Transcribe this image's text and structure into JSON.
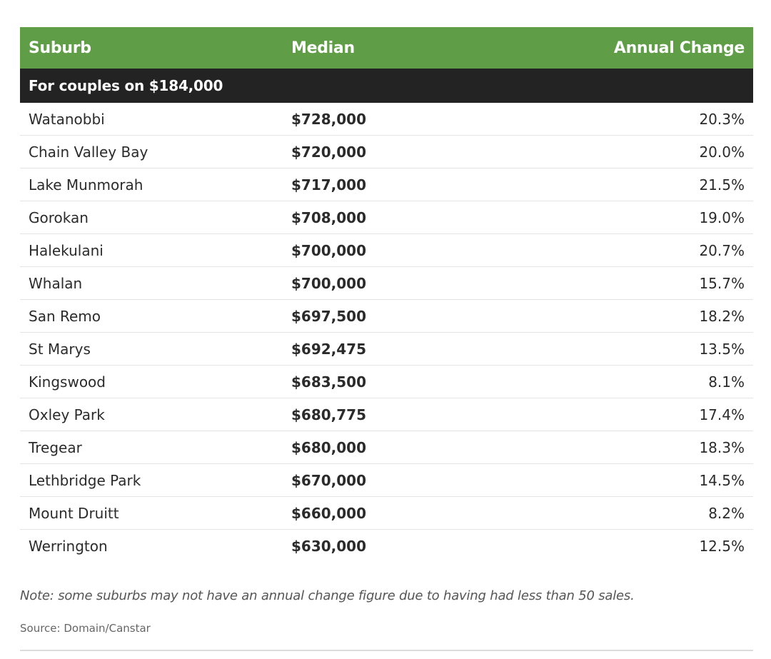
{
  "table": {
    "headers": [
      "Suburb",
      "Median",
      "Annual Change"
    ],
    "group_label": "For couples on $184,000",
    "rows": [
      {
        "suburb": "Watanobbi",
        "median": "$728,000",
        "change": "20.3%"
      },
      {
        "suburb": "Chain Valley Bay",
        "median": "$720,000",
        "change": "20.0%"
      },
      {
        "suburb": "Lake Munmorah",
        "median": "$717,000",
        "change": "21.5%"
      },
      {
        "suburb": "Gorokan",
        "median": "$708,000",
        "change": "19.0%"
      },
      {
        "suburb": "Halekulani",
        "median": "$700,000",
        "change": "20.7%"
      },
      {
        "suburb": "Whalan",
        "median": "$700,000",
        "change": "15.7%"
      },
      {
        "suburb": "San Remo",
        "median": "$697,500",
        "change": "18.2%"
      },
      {
        "suburb": "St Marys",
        "median": "$692,475",
        "change": "13.5%"
      },
      {
        "suburb": "Kingswood",
        "median": "$683,500",
        "change": "8.1%"
      },
      {
        "suburb": "Oxley Park",
        "median": "$680,775",
        "change": "17.4%"
      },
      {
        "suburb": "Tregear",
        "median": "$680,000",
        "change": "18.3%"
      },
      {
        "suburb": "Lethbridge Park",
        "median": "$670,000",
        "change": "14.5%"
      },
      {
        "suburb": "Mount Druitt",
        "median": "$660,000",
        "change": "8.2%"
      },
      {
        "suburb": "Werrington",
        "median": "$630,000",
        "change": "12.5%"
      }
    ]
  },
  "note": "Note: some suburbs may not have an annual change figure due to having had less than 50 sales.",
  "source": "Source: Domain/Canstar",
  "colors": {
    "header_bg": "#5f9e47",
    "group_bg": "#232323"
  }
}
